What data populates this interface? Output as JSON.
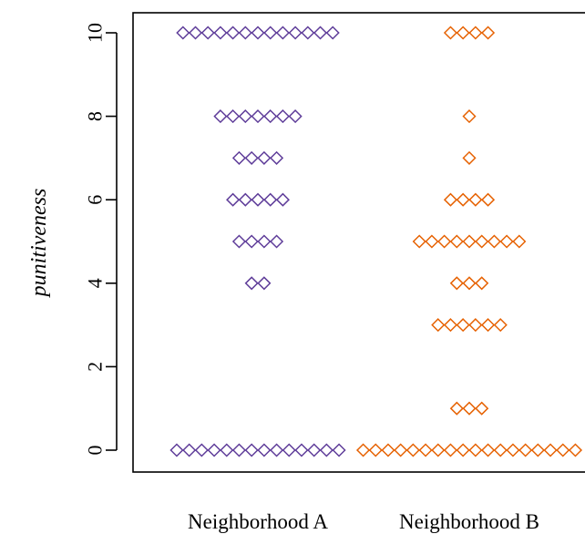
{
  "chart_data": {
    "type": "scatter",
    "title": "",
    "xlabel": "",
    "ylabel": "punitiveness",
    "ylim": [
      -0.5,
      10.5
    ],
    "y_ticks": [
      "0",
      "2",
      "4",
      "6",
      "8",
      "10"
    ],
    "categories": [
      "Neighborhood A",
      "Neighborhood B"
    ],
    "grid": false,
    "legend": "none",
    "series": [
      {
        "category": "Neighborhood A",
        "color": "#5e3c99",
        "points": [
          {
            "y": 10,
            "count": 13
          },
          {
            "y": 8,
            "count": 7
          },
          {
            "y": 7,
            "count": 4
          },
          {
            "y": 6,
            "count": 5
          },
          {
            "y": 5,
            "count": 4
          },
          {
            "y": 4,
            "count": 2
          },
          {
            "y": 0,
            "count": 14
          }
        ]
      },
      {
        "category": "Neighborhood B",
        "color": "#e66101",
        "points": [
          {
            "y": 10,
            "count": 4
          },
          {
            "y": 8,
            "count": 1
          },
          {
            "y": 7,
            "count": 1
          },
          {
            "y": 6,
            "count": 4
          },
          {
            "y": 5,
            "count": 9
          },
          {
            "y": 4,
            "count": 3
          },
          {
            "y": 3,
            "count": 6
          },
          {
            "y": 1,
            "count": 3
          },
          {
            "y": 0,
            "count": 18
          }
        ]
      }
    ]
  }
}
